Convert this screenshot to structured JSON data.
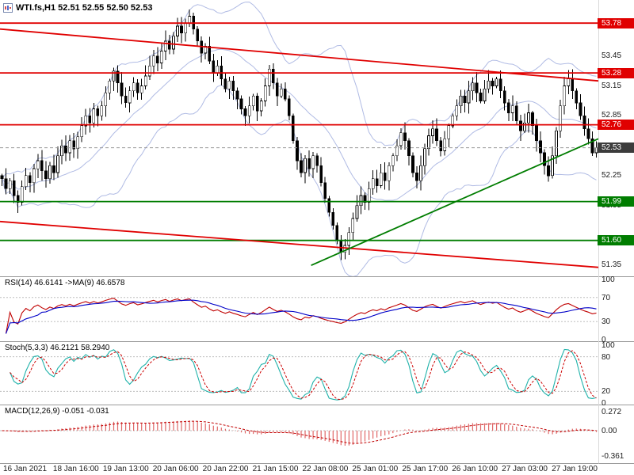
{
  "chart_data": {
    "type": "candlestick",
    "title": "WTI.fs,H1 52.51 52.55 52.50 52.53",
    "symbol": "WTI.fs",
    "timeframe": "H1",
    "ohlc": {
      "open": "52.51",
      "high": "52.55",
      "low": "52.50",
      "close": "52.53"
    },
    "x_tick_labels": [
      "16 Jan 2021",
      "18 Jan 16:00",
      "19 Jan 13:00",
      "20 Jan 06:00",
      "20 Jan 22:00",
      "21 Jan 15:00",
      "22 Jan 08:00",
      "25 Jan 01:00",
      "25 Jan 17:00",
      "26 Jan 10:00",
      "27 Jan 03:00",
      "27 Jan 19:00"
    ],
    "price_panel": {
      "y_tick_labels": [
        "53.45",
        "53.15",
        "52.85",
        "52.25",
        "51.95",
        "51.35"
      ],
      "y_range": [
        51.28,
        53.98
      ],
      "first_open": 52.25,
      "closes": [
        52.22,
        52.12,
        52.2,
        52.05,
        51.98,
        52.14,
        52.25,
        52.18,
        52.32,
        52.4,
        52.3,
        52.22,
        52.35,
        52.28,
        52.45,
        52.55,
        52.48,
        52.6,
        52.52,
        52.64,
        52.75,
        52.85,
        52.78,
        52.92,
        52.85,
        52.95,
        53.08,
        53.2,
        53.3,
        53.18,
        53.05,
        52.98,
        53.1,
        53.18,
        53.08,
        53.15,
        53.25,
        53.35,
        53.45,
        53.38,
        53.5,
        53.6,
        53.52,
        53.65,
        53.75,
        53.68,
        53.78,
        53.85,
        53.72,
        53.6,
        53.48,
        53.55,
        53.4,
        53.28,
        53.35,
        53.22,
        53.12,
        53.2,
        53.1,
        53.02,
        52.92,
        52.85,
        52.95,
        53.05,
        52.9,
        53.0,
        53.15,
        53.32,
        53.18,
        53.05,
        53.12,
        53.02,
        52.85,
        52.6,
        52.4,
        52.28,
        52.42,
        52.32,
        52.45,
        52.35,
        52.18,
        52.02,
        51.88,
        51.75,
        51.6,
        51.48,
        51.55,
        51.68,
        51.82,
        51.95,
        52.05,
        51.98,
        52.12,
        52.22,
        52.15,
        52.28,
        52.2,
        52.35,
        52.45,
        52.55,
        52.68,
        52.6,
        52.45,
        52.28,
        52.2,
        52.35,
        52.52,
        52.65,
        52.72,
        52.6,
        52.5,
        52.62,
        52.75,
        52.85,
        52.95,
        53.05,
        52.98,
        53.1,
        53.18,
        53.08,
        53.0,
        53.12,
        53.2,
        53.15,
        53.22,
        53.1,
        52.98,
        52.88,
        52.95,
        52.8,
        52.7,
        52.78,
        52.88,
        52.75,
        52.6,
        52.48,
        52.35,
        52.25,
        52.45,
        52.7,
        52.95,
        53.15,
        53.22,
        53.1,
        52.98,
        52.85,
        52.72,
        52.62,
        52.48,
        52.53
      ],
      "bollinger": {
        "period": 20,
        "deviations": 2,
        "color": "#b0bbe4"
      },
      "levels": [
        {
          "value": 53.78,
          "label": "53.78",
          "color": "#e00000"
        },
        {
          "value": 53.28,
          "label": "53.28",
          "color": "#e00000"
        },
        {
          "value": 52.76,
          "label": "52.76",
          "color": "#e00000"
        },
        {
          "value": 51.99,
          "label": "51.99",
          "color": "#007d00"
        },
        {
          "value": 51.6,
          "label": "51.60",
          "color": "#007d00"
        }
      ],
      "current_price": {
        "value": 52.53,
        "label": "52.53",
        "color": "#3c3c3c"
      },
      "trendlines": [
        {
          "from": [
            0.0,
            53.72
          ],
          "to": [
            1.0,
            53.2
          ],
          "color": "#e00000"
        },
        {
          "from": [
            0.0,
            51.79
          ],
          "to": [
            1.0,
            51.33
          ],
          "color": "#e00000"
        },
        {
          "from": [
            0.52,
            51.35
          ],
          "to": [
            1.0,
            52.62
          ],
          "color": "#007d00"
        }
      ]
    },
    "indicators": [
      {
        "id": "rsi",
        "label": "RSI(14) 46.6141 ->MA(9) 46.6578",
        "params": {
          "period": 14,
          "ma_period": 9
        },
        "last_values": [
          46.6141,
          46.6578
        ],
        "range": [
          0,
          100
        ],
        "tick_labels": [
          "100",
          "70",
          "30",
          "0"
        ],
        "guides": [
          70,
          30
        ],
        "colors": {
          "main": "#c00000",
          "signal": "#0000c8"
        }
      },
      {
        "id": "stoch",
        "label": "Stoch(5,3,3) 46.2121 58.2940",
        "params": {
          "k": 5,
          "d": 3,
          "slowing": 3
        },
        "last_values": [
          46.2121,
          58.294
        ],
        "range": [
          0,
          100
        ],
        "tick_labels": [
          "100",
          "80",
          "20",
          "0"
        ],
        "guides": [
          80,
          20
        ],
        "colors": {
          "main": "#20b2aa",
          "signal": "#cc0000"
        }
      },
      {
        "id": "macd",
        "label": "MACD(12,26,9) -0.051 -0.031",
        "params": {
          "fast": 12,
          "slow": 26,
          "signal": 9
        },
        "last_values": [
          -0.051,
          -0.031
        ],
        "range": [
          -0.42,
          0.33
        ],
        "tick_labels": [
          "0.272",
          "0.00",
          "-0.361"
        ],
        "guides": [
          0
        ],
        "colors": {
          "hist": "#e06868",
          "signal": "#c00000"
        }
      }
    ]
  }
}
